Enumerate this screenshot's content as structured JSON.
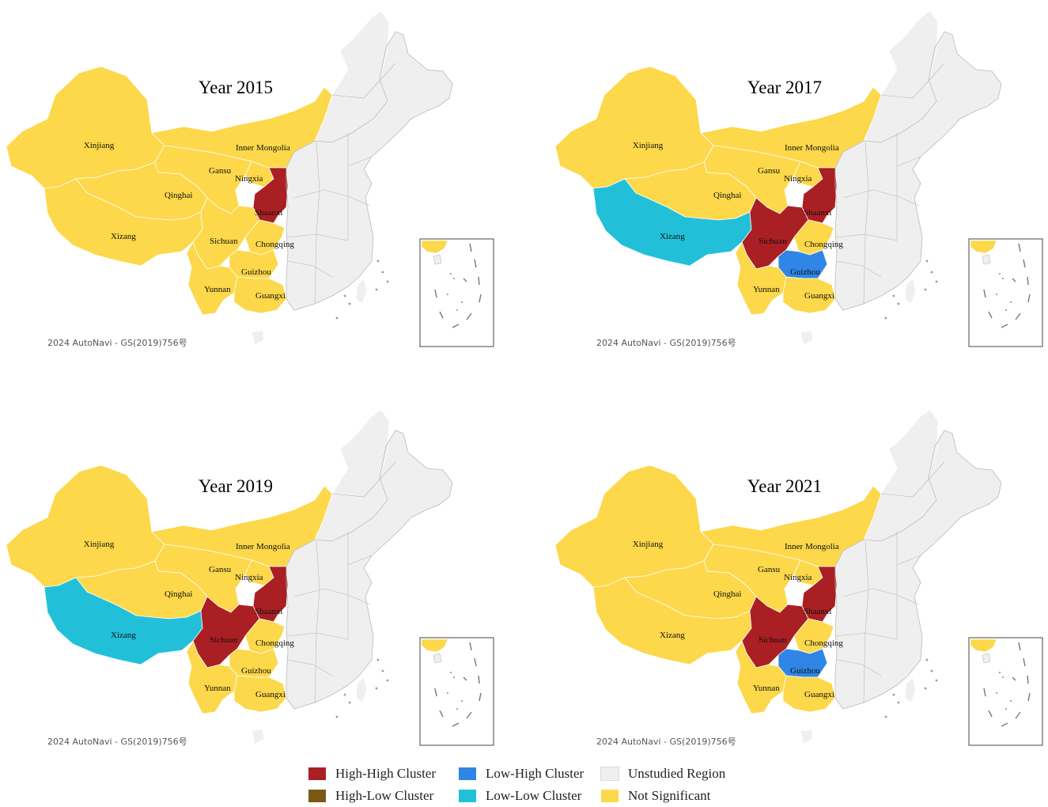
{
  "colors": {
    "high_high": "#AA1F23",
    "high_low": "#7A5A12",
    "low_high": "#2F86E6",
    "low_low": "#22C0D8",
    "unstudied": "#EFEFEF",
    "not_significant": "#FCD84A",
    "border": "#b8b8b8"
  },
  "credit": "2024 AutoNavi - GS(2019)756号",
  "panels": [
    {
      "title": "Year 2015",
      "clusters": {
        "xizang": "not_significant",
        "sichuan": "not_significant",
        "shaanxi": "high_high",
        "guizhou": "not_significant"
      }
    },
    {
      "title": "Year 2017",
      "clusters": {
        "xizang": "low_low",
        "sichuan": "high_high",
        "shaanxi": "high_high",
        "guizhou": "low_high"
      }
    },
    {
      "title": "Year 2019",
      "clusters": {
        "xizang": "low_low",
        "sichuan": "high_high",
        "shaanxi": "high_high",
        "guizhou": "not_significant"
      }
    },
    {
      "title": "Year 2021",
      "clusters": {
        "xizang": "not_significant",
        "sichuan": "high_high",
        "shaanxi": "high_high",
        "guizhou": "low_high"
      }
    }
  ],
  "provinces": {
    "xinjiang": "Xinjiang",
    "inner_mongolia": "Inner Mongolia",
    "gansu": "Gansu",
    "ningxia": "Ningxia",
    "qinghai": "Qinghai",
    "shaanxi": "Shaanxi",
    "xizang": "Xizang",
    "sichuan": "Sichuan",
    "chongqing": "Chongqing",
    "guizhou": "Guizhou",
    "yunnan": "Yunnan",
    "guangxi": "Guangxi"
  },
  "legend": [
    {
      "label": "High-High Cluster",
      "color_key": "high_high"
    },
    {
      "label": "High-Low Cluster",
      "color_key": "high_low"
    },
    {
      "label": "Low-High Cluster",
      "color_key": "low_high"
    },
    {
      "label": "Low-Low Cluster",
      "color_key": "low_low"
    },
    {
      "label": "Unstudied Region",
      "color_key": "unstudied"
    },
    {
      "label": "Not Significant",
      "color_key": "not_significant"
    }
  ]
}
